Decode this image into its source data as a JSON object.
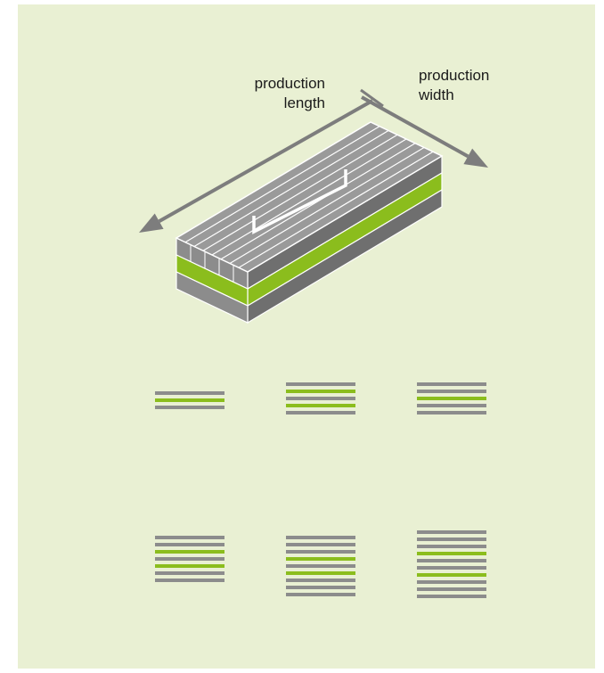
{
  "labels": {
    "production_length": [
      "production",
      "length"
    ],
    "production_width": [
      "production",
      "width"
    ]
  },
  "colors": {
    "background": "#e9f0d3",
    "gray": "#8c8c8c",
    "green": "#8bbd1d",
    "arrow": "#7d7d7d",
    "top_face": "#9a9a9a",
    "front_face": "#6f6f6f"
  },
  "block_layers": [
    "gray",
    "green",
    "gray"
  ],
  "layups": [
    [
      "gray",
      "green",
      "gray"
    ],
    [
      "gray",
      "green",
      "gray",
      "green",
      "gray"
    ],
    [
      "gray",
      "gray",
      "green",
      "gray",
      "gray"
    ],
    [
      "gray",
      "gray",
      "green",
      "gray",
      "green",
      "gray",
      "gray"
    ],
    [
      "gray",
      "gray",
      "gray",
      "green",
      "gray",
      "green",
      "gray",
      "gray",
      "gray"
    ],
    [
      "gray",
      "gray",
      "gray",
      "green",
      "gray",
      "gray",
      "green",
      "gray",
      "gray",
      "gray"
    ]
  ]
}
